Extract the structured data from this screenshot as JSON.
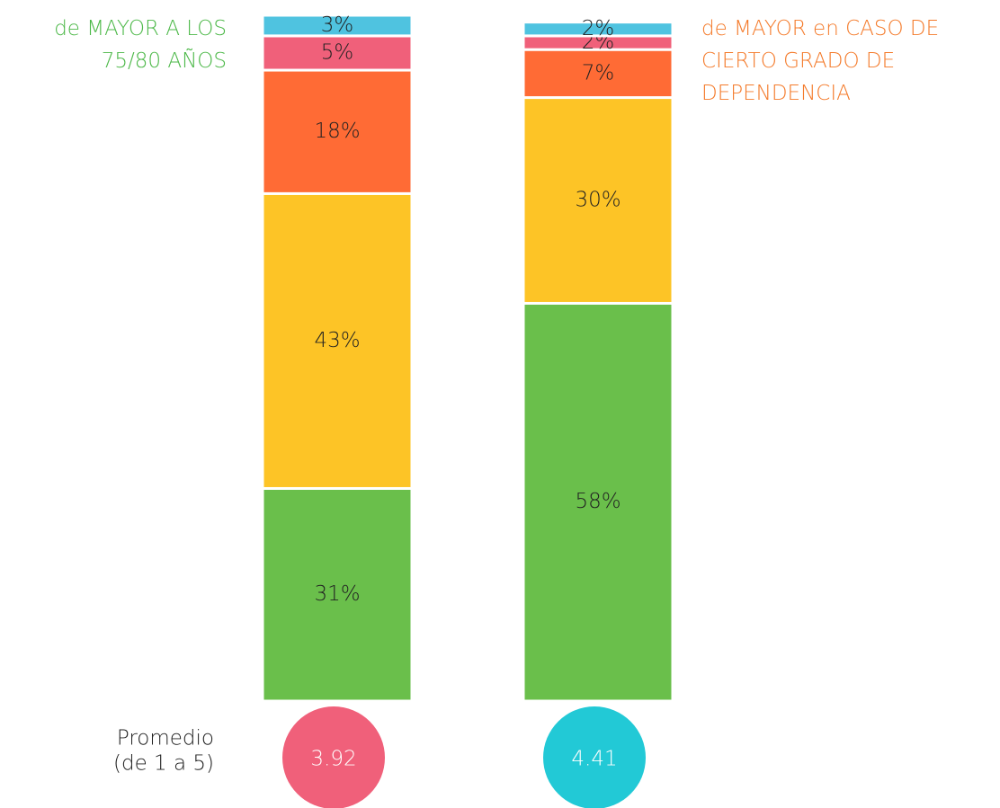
{
  "chart_data": {
    "type": "bar",
    "stacked": true,
    "categories": [
      "de MAYOR A LOS 75/80 AÑOS",
      "de MAYOR en CASO DE CIERTO GRADO DE DEPENDENCIA"
    ],
    "category_colors": [
      "#4cb848",
      "#f47a2a"
    ],
    "ylim": [
      0,
      100
    ],
    "series": [
      {
        "color": "#6abf4b",
        "values": [
          31,
          58
        ],
        "value_labels": [
          "31%",
          "58%"
        ]
      },
      {
        "color": "#fdc426",
        "values": [
          43,
          30
        ],
        "value_labels": [
          "43%",
          "30%"
        ]
      },
      {
        "color": "#ff6b35",
        "values": [
          18,
          7
        ],
        "value_labels": [
          "18%",
          "7%"
        ]
      },
      {
        "color": "#f0607a",
        "values": [
          5,
          2
        ],
        "value_labels": [
          "5%",
          "2%"
        ]
      },
      {
        "color": "#4fc3e0",
        "values": [
          3,
          2
        ],
        "value_labels": [
          "3%",
          "2%"
        ]
      }
    ],
    "average": {
      "label_lines": [
        "Promedio",
        "(de 1 a 5)"
      ],
      "values": [
        3.92,
        4.41
      ],
      "colors": [
        "#f0607a",
        "#22c9d6"
      ]
    }
  }
}
